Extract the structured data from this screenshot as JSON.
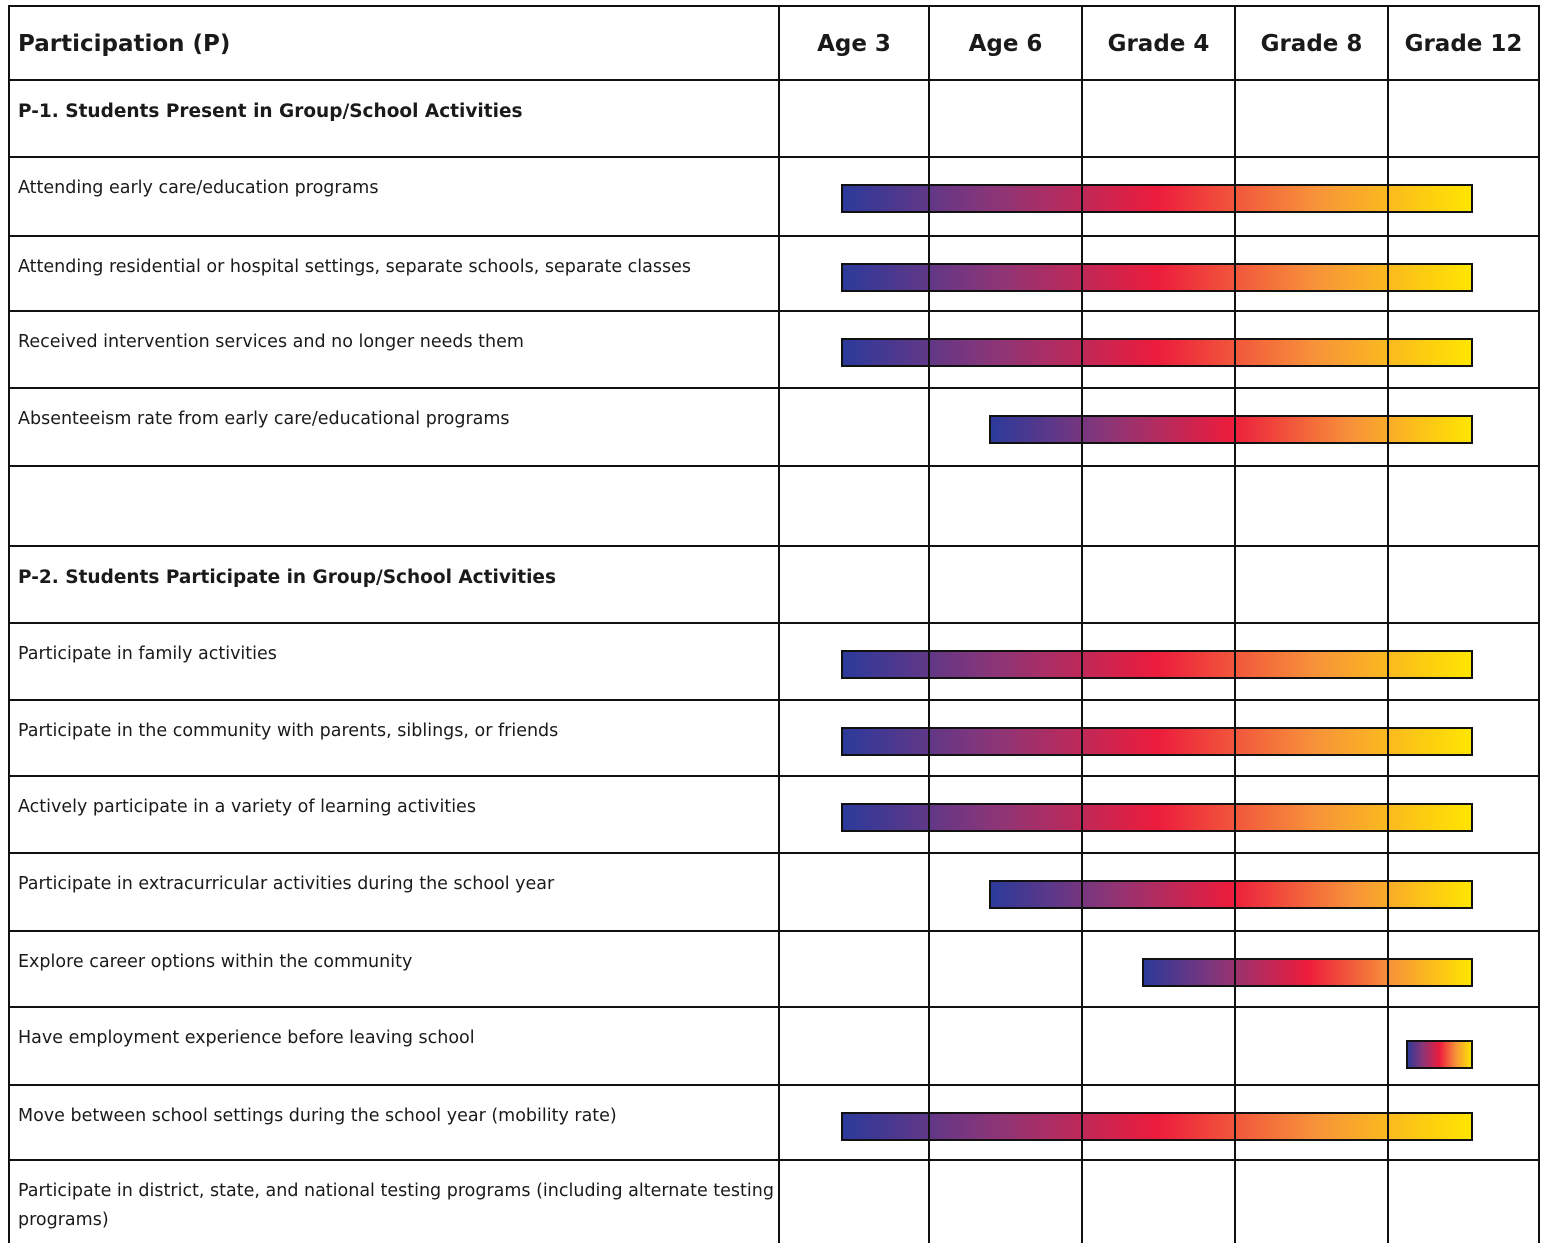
{
  "chart_data": {
    "type": "table",
    "title": "",
    "corner_label": "Participation (P)",
    "columns": [
      "Age 3",
      "Age 6",
      "Grade 4",
      "Grade 8",
      "Grade 12"
    ],
    "rows": [
      {
        "kind": "section",
        "label": "P-1. Students Present in Group/School Activities"
      },
      {
        "kind": "item",
        "label": [
          "Attending early care/education programs"
        ],
        "start": 0,
        "end": 4
      },
      {
        "kind": "item",
        "label": [
          "Attending residential or hospital settings, separate schools, separate classes"
        ],
        "start": 0,
        "end": 4
      },
      {
        "kind": "item",
        "label": [
          "Received intervention services and no longer needs them"
        ],
        "start": 0,
        "end": 4
      },
      {
        "kind": "item",
        "label": [
          "Absenteeism rate from early care/educational programs"
        ],
        "start": 1,
        "end": 4
      },
      {
        "kind": "blank"
      },
      {
        "kind": "section",
        "label": "P-2. Students Participate in Group/School Activities"
      },
      {
        "kind": "item",
        "label": [
          "Participate in family activities"
        ],
        "start": 0,
        "end": 4
      },
      {
        "kind": "item",
        "label": [
          "Participate in the community with parents, siblings, or friends"
        ],
        "start": 0,
        "end": 4
      },
      {
        "kind": "item",
        "label": [
          "Actively participate in a variety of learning activities"
        ],
        "start": 0,
        "end": 4
      },
      {
        "kind": "item",
        "label": [
          "Participate in extracurricular activities during the school year"
        ],
        "start": 1,
        "end": 4
      },
      {
        "kind": "item",
        "label": [
          "Explore career options within the community"
        ],
        "start": 2,
        "end": 4
      },
      {
        "kind": "item",
        "label": [
          "Have employment experience before leaving school"
        ],
        "start": 4,
        "end": 4
      },
      {
        "kind": "item",
        "label": [
          "Move between school settings during the school year (mobility rate)"
        ],
        "start": 0,
        "end": 4
      },
      {
        "kind": "item",
        "label": [
          "Participate in district, state, and national testing programs (including alternate testing",
          "programs)"
        ],
        "start": null,
        "end": null
      }
    ],
    "bar_gradient": [
      "#2b3a9b",
      "#8e3576",
      "#ec1c3c",
      "#f7923a",
      "#ffe600"
    ],
    "grid_color": "#111111"
  }
}
